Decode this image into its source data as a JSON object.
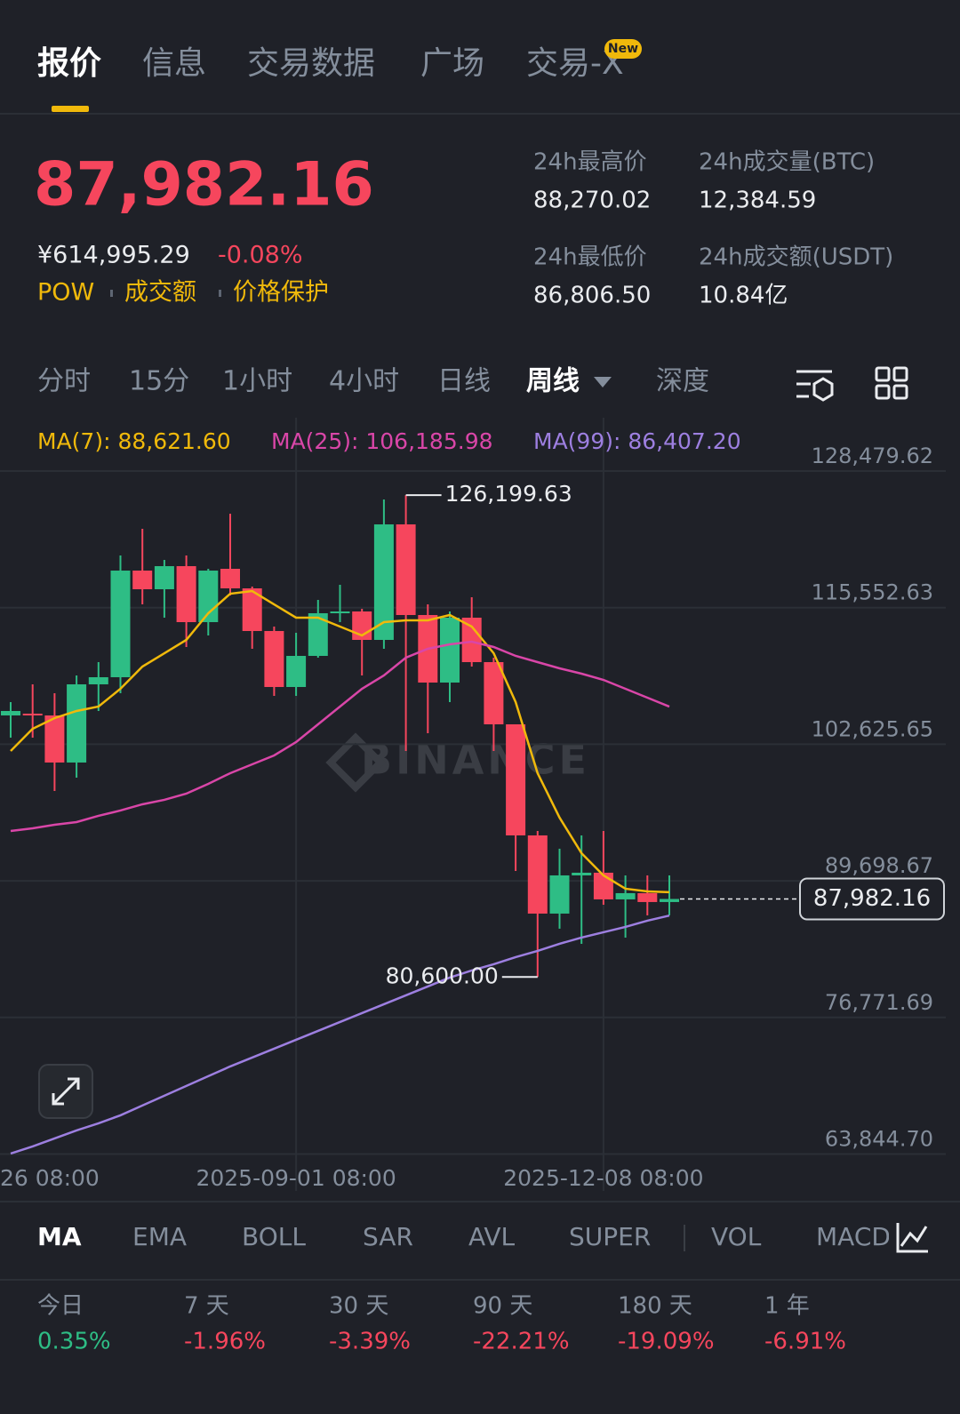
{
  "tabs": [
    "报价",
    "信息",
    "交易数据",
    "广场",
    "交易-X"
  ],
  "new_badge": "New",
  "price": "87,982.16",
  "price_cny": "¥614,995.29",
  "change": "-0.08%",
  "tags": [
    "POW",
    "成交额",
    "价格保护"
  ],
  "stats": [
    {
      "label": "24h最高价",
      "value": "88,270.02"
    },
    {
      "label": "24h成交量(BTC)",
      "value": "12,384.59"
    },
    {
      "label": "24h最低价",
      "value": "86,806.50"
    },
    {
      "label": "24h成交额(USDT)",
      "value": "10.84亿"
    }
  ],
  "intervals": [
    "分时",
    "15分",
    "1小时",
    "4小时",
    "日线",
    "周线",
    "深度"
  ],
  "chart_data": {
    "type": "candlestick",
    "watermark": "BINANCE",
    "up_color": "#2ebd85",
    "down_color": "#f6465d",
    "grid": true,
    "ylim": [
      60350,
      133530
    ],
    "yticks": [
      {
        "value": 63844.7,
        "label": "63,844.70"
      },
      {
        "value": 76771.69,
        "label": "76,771.69"
      },
      {
        "value": 89698.67,
        "label": "89,698.67"
      },
      {
        "value": 102625.65,
        "label": "102,625.65"
      },
      {
        "value": 115552.63,
        "label": "115,552.63"
      },
      {
        "value": 128479.62,
        "label": "128,479.62"
      }
    ],
    "x_edge_label": "26 08:00",
    "categories": [
      null,
      null,
      null,
      null,
      null,
      null,
      null,
      null,
      null,
      null,
      null,
      null,
      null,
      "2025-09-01 08:00",
      null,
      null,
      null,
      null,
      null,
      null,
      null,
      null,
      null,
      null,
      null,
      null,
      null,
      "2025-12-08 08:00",
      null,
      null,
      null
    ],
    "open": [
      105353,
      105521,
      105353,
      100896,
      108296,
      108969,
      119061,
      117295,
      119481,
      114183,
      119229,
      117379,
      113342,
      108044,
      110987,
      115024,
      115192,
      112501,
      123434,
      114856,
      108464,
      114604,
      110399,
      104512,
      93999,
      86598,
      90214,
      90467,
      87944,
      88532,
      87691
    ],
    "high": [
      106614,
      108296,
      107455,
      109137,
      110399,
      120491,
      123014,
      120070,
      120491,
      119229,
      124443,
      117547,
      113763,
      113174,
      116285,
      117716,
      115445,
      125789,
      126199.63,
      115865,
      115192,
      116538,
      110819,
      104512,
      94420,
      92738,
      94000,
      94420,
      90214,
      90214,
      90214
    ],
    "low": [
      103250,
      103250,
      98205,
      99466,
      105773,
      107455,
      115865,
      114604,
      111829,
      112922,
      116706,
      111660,
      107203,
      107203,
      110819,
      114183,
      109137,
      111660,
      101989,
      103671,
      106614,
      109978,
      101989,
      90635,
      80600,
      85169,
      83739,
      87440,
      84328,
      86430,
      86430
    ],
    "close": [
      105773,
      105353,
      100896,
      108296,
      108969,
      119061,
      117295,
      119481,
      114183,
      119061,
      117379,
      113342,
      108044,
      110987,
      115024,
      115192,
      112501,
      123434,
      114856,
      108464,
      114604,
      110399,
      104512,
      93999,
      86598,
      90214,
      90467,
      87944,
      88532,
      87691,
      87982.16
    ],
    "series": [
      {
        "label": "MA(7): 88,621.60",
        "color": "#f0b90b",
        "values": [
          101988,
          104091,
          105100,
          105773,
          106193,
          107875,
          109978,
          111239,
          112501,
          115024,
          116874,
          117126,
          115865,
          114604,
          114604,
          113763,
          112922,
          114183,
          114351,
          114351,
          114856,
          113763,
          111239,
          106614,
          99886,
          95681,
          92317,
          90214,
          88953,
          88700,
          88621.6
        ]
      },
      {
        "label": "MA(25): 106,185.98",
        "color": "#d946a8",
        "values": [
          94419,
          94672,
          95008,
          95260,
          95849,
          96354,
          96942,
          97363,
          97952,
          98877,
          99886,
          100727,
          101568,
          102829,
          104512,
          106193,
          107875,
          109137,
          110819,
          111660,
          112080,
          112333,
          111829,
          110987,
          110399,
          109810,
          109305,
          108716,
          107875,
          107034,
          106185.98
        ]
      },
      {
        "label": "MA(99): 86,407.20",
        "color": "#9d7fe0",
        "values": [
          63891,
          64564,
          65321,
          66078,
          66751,
          67507,
          68433,
          69358,
          70283,
          71208,
          72133,
          72974,
          73815,
          74656,
          75497,
          76338,
          77179,
          78020,
          78861,
          79702,
          80543,
          81216,
          81804,
          82477,
          83066,
          83739,
          84327,
          84832,
          85337,
          85925,
          86407.2
        ]
      }
    ],
    "annotations": [
      {
        "value": 126199.63,
        "label": "126,199.63"
      },
      {
        "value": 80600,
        "label": "80,600.00"
      }
    ],
    "last_price": {
      "value": 87982.16,
      "label": "87,982.16"
    }
  },
  "indicators": [
    "MA",
    "EMA",
    "BOLL",
    "SAR",
    "AVL",
    "SUPER",
    "VOL",
    "MACD"
  ],
  "performance": [
    {
      "label": "今日",
      "value": "0.35%",
      "color": "#2ebd85"
    },
    {
      "label": "7 天",
      "value": "-1.96%",
      "color": "#f6465d"
    },
    {
      "label": "30 天",
      "value": "-3.39%",
      "color": "#f6465d"
    },
    {
      "label": "90 天",
      "value": "-22.21%",
      "color": "#f6465d"
    },
    {
      "label": "180 天",
      "value": "-19.09%",
      "color": "#f6465d"
    },
    {
      "label": "1 年",
      "value": "-6.91%",
      "color": "#f6465d"
    }
  ]
}
